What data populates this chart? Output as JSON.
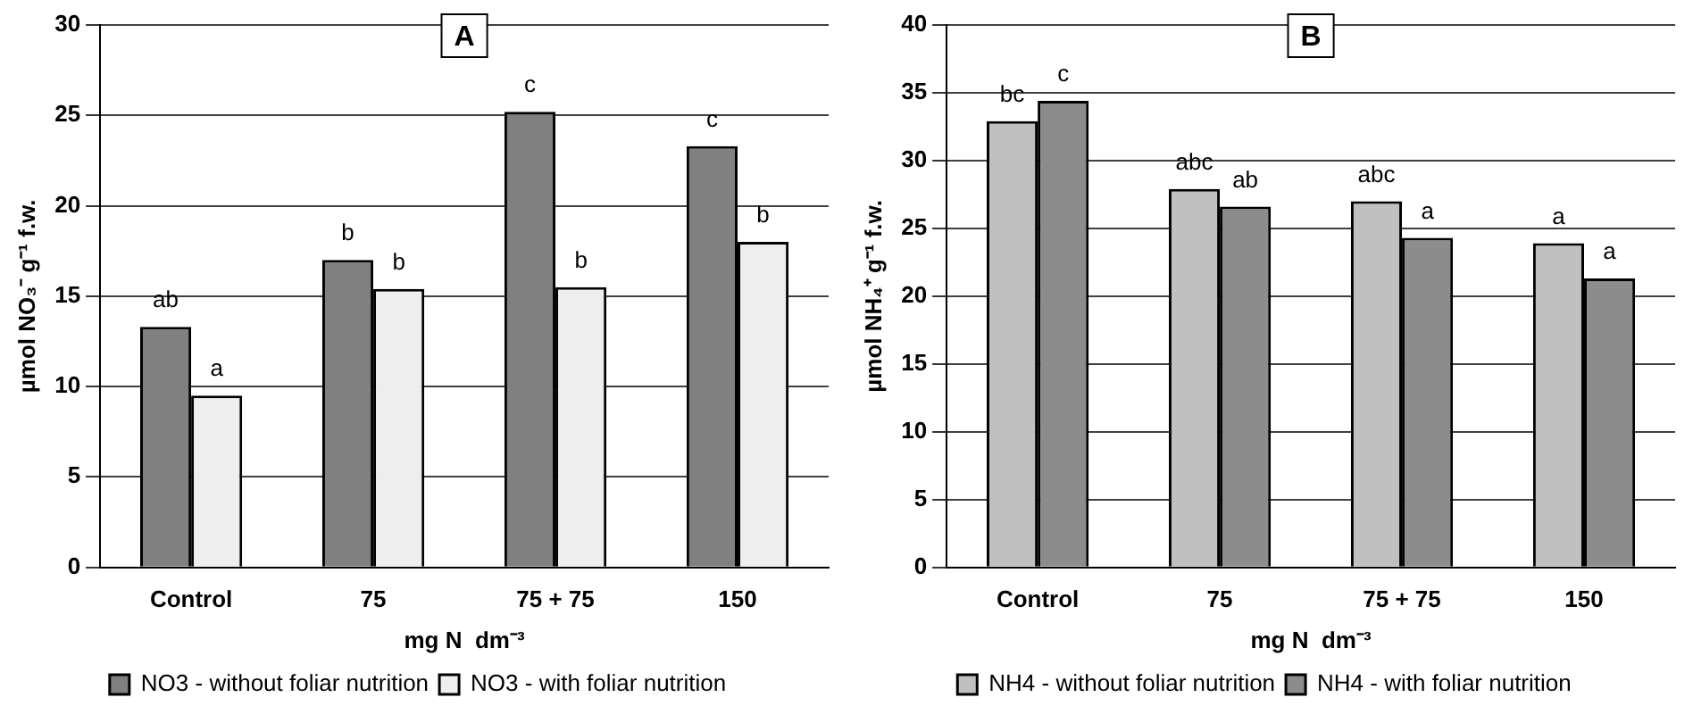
{
  "chart_data": [
    {
      "type": "bar",
      "title": "A",
      "xlabel": "mg N  dm⁻³",
      "ylabel": "µmol NO₃⁻ g⁻¹ f.w.",
      "categories": [
        "Control",
        "75",
        "75 + 75",
        "150"
      ],
      "series": [
        {
          "name": "NO3 - without foliar nutrition",
          "color": "#808080",
          "values": [
            13.3,
            17.0,
            25.2,
            23.3
          ]
        },
        {
          "name": "NO3 - with foliar nutrition",
          "color": "#eeeeee",
          "values": [
            9.5,
            15.4,
            15.5,
            18.0
          ]
        }
      ],
      "ylim": [
        0,
        30
      ],
      "yticks": [
        0,
        5,
        10,
        15,
        20,
        25,
        30
      ],
      "grid": "y",
      "legend": "bottom",
      "annotations": [
        {
          "text": "ab",
          "x": "Control",
          "y": 13.3
        },
        {
          "text": "a",
          "x": "Control",
          "y": 9.5
        },
        {
          "text": "b",
          "x": "75",
          "y": 17.0
        },
        {
          "text": "b",
          "x": "75",
          "y": 15.4
        },
        {
          "text": "c",
          "x": "75 + 75",
          "y": 25.2
        },
        {
          "text": "b",
          "x": "75 + 75",
          "y": 15.5
        },
        {
          "text": "c",
          "x": "150",
          "y": 23.3
        },
        {
          "text": "b",
          "x": "150",
          "y": 18.0
        }
      ]
    },
    {
      "type": "bar",
      "title": "B",
      "xlabel": "mg N  dm⁻³",
      "ylabel": "µmol NH₄⁺ g⁻¹ f.w.",
      "categories": [
        "Control",
        "75",
        "75 + 75",
        "150"
      ],
      "series": [
        {
          "name": "NH4 - without foliar nutrition",
          "color": "#c0c0c0",
          "values": [
            32.9,
            27.9,
            27.0,
            23.9
          ]
        },
        {
          "name": "NH4 - with foliar nutrition",
          "color": "#8c8c8c",
          "values": [
            34.4,
            26.6,
            24.3,
            21.3
          ]
        }
      ],
      "ylim": [
        0,
        40
      ],
      "yticks": [
        0,
        5,
        10,
        15,
        20,
        25,
        30,
        35,
        40
      ],
      "grid": "y",
      "legend": "bottom",
      "annotations": [
        {
          "text": "bc",
          "x": "Control",
          "y": 32.9
        },
        {
          "text": "c",
          "x": "Control",
          "y": 34.4
        },
        {
          "text": "abc",
          "x": "75",
          "y": 27.9
        },
        {
          "text": "ab",
          "x": "75",
          "y": 26.6
        },
        {
          "text": "abc",
          "x": "75 + 75",
          "y": 27.0
        },
        {
          "text": "a",
          "x": "75 + 75",
          "y": 24.3
        },
        {
          "text": "a",
          "x": "150",
          "y": 23.9
        },
        {
          "text": "a",
          "x": "150",
          "y": 21.3
        }
      ]
    }
  ]
}
